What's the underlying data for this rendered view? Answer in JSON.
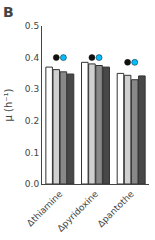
{
  "chart_data": {
    "type": "bar",
    "title": "B",
    "ylabel": "μ (h⁻¹)",
    "categories": [
      "Δthiamine",
      "Δpyridoxine",
      "Δpantothe"
    ],
    "series": [
      {
        "color": "#ffffff",
        "values": [
          0.37,
          0.385,
          0.35
        ]
      },
      {
        "color": "#d0d0d0",
        "values": [
          0.362,
          0.38,
          0.344
        ]
      },
      {
        "color": "#888888",
        "values": [
          0.355,
          0.375,
          0.33
        ]
      },
      {
        "color": "#484848",
        "values": [
          0.348,
          0.37,
          0.342
        ]
      },
      {
        "type": "scatter",
        "marker": "circle",
        "color": "#111111",
        "values": [
          0.4,
          0.4,
          0.385
        ]
      },
      {
        "type": "scatter",
        "marker": "circle",
        "color": "#00bfff",
        "values": [
          0.4,
          0.4,
          0.385
        ]
      }
    ],
    "ylim": [
      0.0,
      0.5
    ],
    "yticks": [
      {
        "value": 0.0,
        "label": "0.0"
      },
      0.1,
      0.2,
      0.3,
      0.4,
      0.5
    ],
    "grid": false
  }
}
